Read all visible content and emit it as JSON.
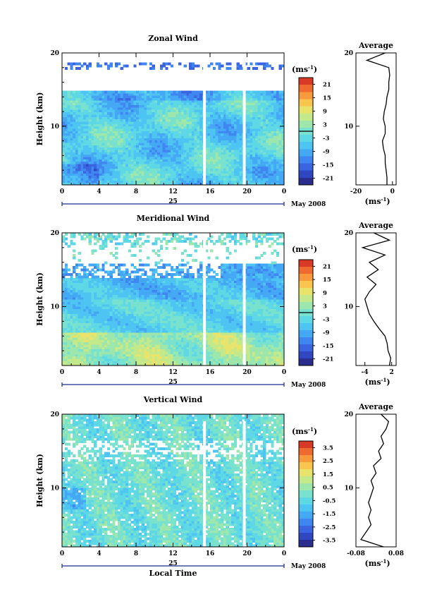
{
  "colors": {
    "scale": [
      "#2b2d8e",
      "#2f47c0",
      "#3a64e0",
      "#3f86f0",
      "#45a8f5",
      "#4ec4f2",
      "#5fd8e6",
      "#78e2cf",
      "#9de7ac",
      "#c4e98a",
      "#e8e36a",
      "#f8c54f",
      "#f89a3b",
      "#ef6a2e",
      "#d93a28"
    ],
    "contour": "#000000",
    "axis": "#000000",
    "time_axis": "#1a2a8a"
  },
  "chart_data": [
    {
      "type": "heatmap",
      "title": "Zonal Wind",
      "ylabel": "Height (km)",
      "ylim": [
        2,
        20
      ],
      "yticks": [
        10,
        20
      ],
      "x_ticks": [
        "0",
        "4",
        "8",
        "12",
        "16",
        "20",
        "0"
      ],
      "xlim_hours": [
        0,
        24
      ],
      "date_label": "25",
      "month_label": "May 2008",
      "colorbar": {
        "unit": "(ms",
        "unit_exp": "-1",
        "unit_close": ")",
        "tick_labels": [
          "21",
          "15",
          "9",
          "3",
          "-3",
          "-9",
          "-15",
          "-21"
        ],
        "range": [
          -24,
          24
        ]
      },
      "data_gaps_hours": [
        15.4,
        19.7
      ],
      "average": {
        "title": "Average",
        "xlabel": "(ms",
        "xlabel_exp": "-1",
        "xlabel_close": ")",
        "xlim": [
          -20,
          2
        ],
        "xticks": [
          "-20",
          "0"
        ],
        "yticks": [
          "10",
          "20"
        ],
        "profile": {
          "height": [
            2,
            3,
            4,
            5,
            6,
            7,
            8,
            9,
            10,
            11,
            12,
            13,
            14,
            15,
            16,
            17,
            18,
            19,
            20
          ],
          "value": [
            -3,
            -3,
            -3.5,
            -4,
            -4,
            -5,
            -5.5,
            -4,
            -4,
            -5,
            -4.5,
            -3.5,
            -3,
            -2,
            -2,
            -1.5,
            -2,
            -14,
            -4
          ]
        }
      }
    },
    {
      "type": "heatmap",
      "title": "Meridional Wind",
      "ylabel": "Height (km)",
      "ylim": [
        2,
        20
      ],
      "yticks": [
        10,
        20
      ],
      "x_ticks": [
        "0",
        "4",
        "8",
        "12",
        "16",
        "20",
        "0"
      ],
      "xlim_hours": [
        0,
        24
      ],
      "date_label": "25",
      "month_label": "May 2008",
      "colorbar": {
        "unit": "(ms",
        "unit_exp": "-1",
        "unit_close": ")",
        "tick_labels": [
          "21",
          "15",
          "9",
          "3",
          "-3",
          "-9",
          "-15",
          "-21"
        ],
        "range": [
          -24,
          24
        ]
      },
      "data_gaps_hours": [
        15.4,
        19.7
      ],
      "average": {
        "title": "Average",
        "xlabel": "(ms",
        "xlabel_exp": "-1",
        "xlabel_close": ")",
        "xlim": [
          -6,
          3
        ],
        "xticks": [
          "-4",
          "2"
        ],
        "yticks": [
          "10",
          "20"
        ],
        "profile": {
          "height": [
            2,
            3,
            4,
            5,
            6,
            7,
            8,
            9,
            10,
            11,
            12,
            13,
            14,
            15,
            16,
            17,
            18,
            19,
            20
          ],
          "value": [
            1.5,
            1.8,
            1.2,
            1.0,
            0.5,
            -0.8,
            -2.0,
            -3.0,
            -3.5,
            -4.0,
            -3.0,
            -1.5,
            -3.5,
            -1.0,
            -3.0,
            0.5,
            -4.5,
            1.5,
            -2.0
          ]
        }
      }
    },
    {
      "type": "heatmap",
      "title": "Vertical Wind",
      "ylabel": "Height (km)",
      "xlabel": "Local Time",
      "ylim": [
        2,
        20
      ],
      "yticks": [
        10,
        20
      ],
      "x_ticks": [
        "0",
        "4",
        "8",
        "12",
        "16",
        "20",
        "0"
      ],
      "xlim_hours": [
        0,
        24
      ],
      "date_label": "25",
      "month_label": "May 2008",
      "colorbar": {
        "unit": "(ms",
        "unit_exp": "-1",
        "unit_close": ")",
        "tick_labels": [
          "3.5",
          "2.5",
          "1.5",
          "0.5",
          "-0.5",
          "-1.5",
          "-2.5",
          "-3.5"
        ],
        "range": [
          -4,
          4
        ]
      },
      "data_gaps_hours": [
        15.4,
        19.7
      ],
      "average": {
        "title": "Average",
        "xlabel": "(ms",
        "xlabel_exp": "-1",
        "xlabel_close": ")",
        "xlim": [
          -0.08,
          0.08
        ],
        "xticks": [
          "-0.08",
          "0.08"
        ],
        "yticks": [
          "10",
          "20"
        ],
        "profile": {
          "height": [
            2,
            3,
            4,
            5,
            6,
            7,
            8,
            9,
            10,
            11,
            12,
            13,
            14,
            15,
            16,
            17,
            18,
            19,
            20
          ],
          "value": [
            0.03,
            -0.06,
            -0.04,
            -0.02,
            -0.03,
            -0.02,
            -0.03,
            -0.02,
            -0.01,
            -0.02,
            0.0,
            -0.01,
            0.02,
            0.01,
            0.03,
            0.02,
            0.04,
            0.05,
            0.02
          ]
        }
      }
    }
  ]
}
